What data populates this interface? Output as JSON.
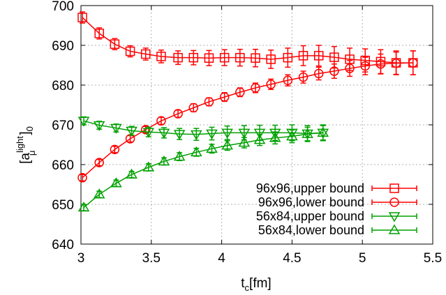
{
  "chart_data": {
    "type": "line",
    "xlabel": {
      "base": "t",
      "sub": "c",
      "rest": "[fm]"
    },
    "ylabel": {
      "open": "[a",
      "sup": "light",
      "sub": "μ",
      "close": "]",
      "outer_sub": "0"
    },
    "xlim": [
      3,
      5.5
    ],
    "ylim": [
      640,
      700
    ],
    "x_ticks": [
      3,
      3.5,
      4,
      4.5,
      5,
      5.5
    ],
    "x_tick_labels": [
      "3",
      "3.5",
      "4",
      "4.5",
      "5",
      "5.5"
    ],
    "y_ticks": [
      640,
      650,
      660,
      670,
      680,
      690,
      700
    ],
    "y_tick_labels": [
      "640",
      "650",
      "660",
      "670",
      "680",
      "690",
      "700"
    ],
    "grid": true,
    "legend_position": "bottom-right",
    "series": [
      {
        "name": "96x96,upper bound",
        "color": "#ff0000",
        "marker": "square",
        "x": [
          3.01,
          3.13,
          3.24,
          3.35,
          3.46,
          3.57,
          3.69,
          3.8,
          3.91,
          4.02,
          4.13,
          4.24,
          4.35,
          4.47,
          4.58,
          4.69,
          4.8,
          4.91,
          5.02,
          5.13,
          5.24,
          5.36
        ],
        "y": [
          697.0,
          693.0,
          690.3,
          688.5,
          687.8,
          687.2,
          686.9,
          686.9,
          686.8,
          686.9,
          686.9,
          686.8,
          686.5,
          686.9,
          687.4,
          687.4,
          687.0,
          686.5,
          686.2,
          685.9,
          685.6,
          685.6
        ],
        "err": [
          1.4,
          1.4,
          1.4,
          1.4,
          1.5,
          1.6,
          1.7,
          1.8,
          1.9,
          2.0,
          2.1,
          2.2,
          2.3,
          2.4,
          2.5,
          2.6,
          2.7,
          2.8,
          2.9,
          3.0,
          3.0,
          3.0
        ]
      },
      {
        "name": "96x96,lower bound",
        "color": "#ff0000",
        "marker": "circle",
        "x": [
          3.01,
          3.13,
          3.24,
          3.35,
          3.46,
          3.57,
          3.69,
          3.8,
          3.91,
          4.02,
          4.13,
          4.24,
          4.35,
          4.47,
          4.58,
          4.69,
          4.8,
          4.91,
          5.02,
          5.13,
          5.24,
          5.36
        ],
        "y": [
          656.7,
          660.5,
          663.8,
          666.5,
          668.8,
          671.0,
          672.8,
          674.3,
          675.8,
          677.0,
          678.2,
          679.3,
          680.2,
          681.2,
          682.0,
          682.9,
          683.5,
          684.2,
          684.8,
          685.3,
          685.5,
          685.6
        ],
        "err": [
          0.8,
          0.8,
          0.8,
          0.8,
          0.8,
          0.9,
          0.9,
          1.0,
          1.0,
          1.1,
          1.1,
          1.2,
          1.3,
          1.4,
          1.5,
          1.6,
          1.8,
          2.0,
          2.2,
          2.5,
          2.8,
          3.0
        ]
      },
      {
        "name": "56x84,upper bound",
        "color": "#00a000",
        "marker": "triangle-down",
        "x": [
          3.02,
          3.13,
          3.25,
          3.36,
          3.48,
          3.59,
          3.7,
          3.82,
          3.93,
          4.04,
          4.16,
          4.27,
          4.38,
          4.5,
          4.61,
          4.72
        ],
        "y": [
          671.0,
          669.9,
          669.2,
          668.5,
          668.2,
          668.0,
          667.7,
          667.6,
          667.8,
          668.0,
          668.0,
          668.0,
          668.0,
          668.0,
          667.8,
          668.0
        ],
        "err": [
          1.0,
          1.0,
          1.0,
          1.1,
          1.2,
          1.3,
          1.4,
          1.5,
          1.6,
          1.7,
          1.8,
          1.9,
          1.9,
          2.0,
          2.0,
          2.0
        ]
      },
      {
        "name": "56x84,lower bound",
        "color": "#00a000",
        "marker": "triangle-up",
        "x": [
          3.02,
          3.13,
          3.25,
          3.36,
          3.48,
          3.59,
          3.7,
          3.82,
          3.93,
          4.04,
          4.16,
          4.27,
          4.38,
          4.5,
          4.61,
          4.72
        ],
        "y": [
          649.2,
          652.5,
          655.3,
          657.5,
          659.3,
          660.8,
          662.0,
          663.1,
          664.0,
          664.8,
          665.5,
          666.2,
          666.7,
          667.1,
          667.7,
          668.0
        ],
        "err": [
          0.8,
          0.8,
          0.8,
          0.8,
          0.9,
          0.9,
          1.0,
          1.0,
          1.1,
          1.2,
          1.3,
          1.4,
          1.5,
          1.6,
          1.7,
          1.8
        ]
      }
    ]
  }
}
